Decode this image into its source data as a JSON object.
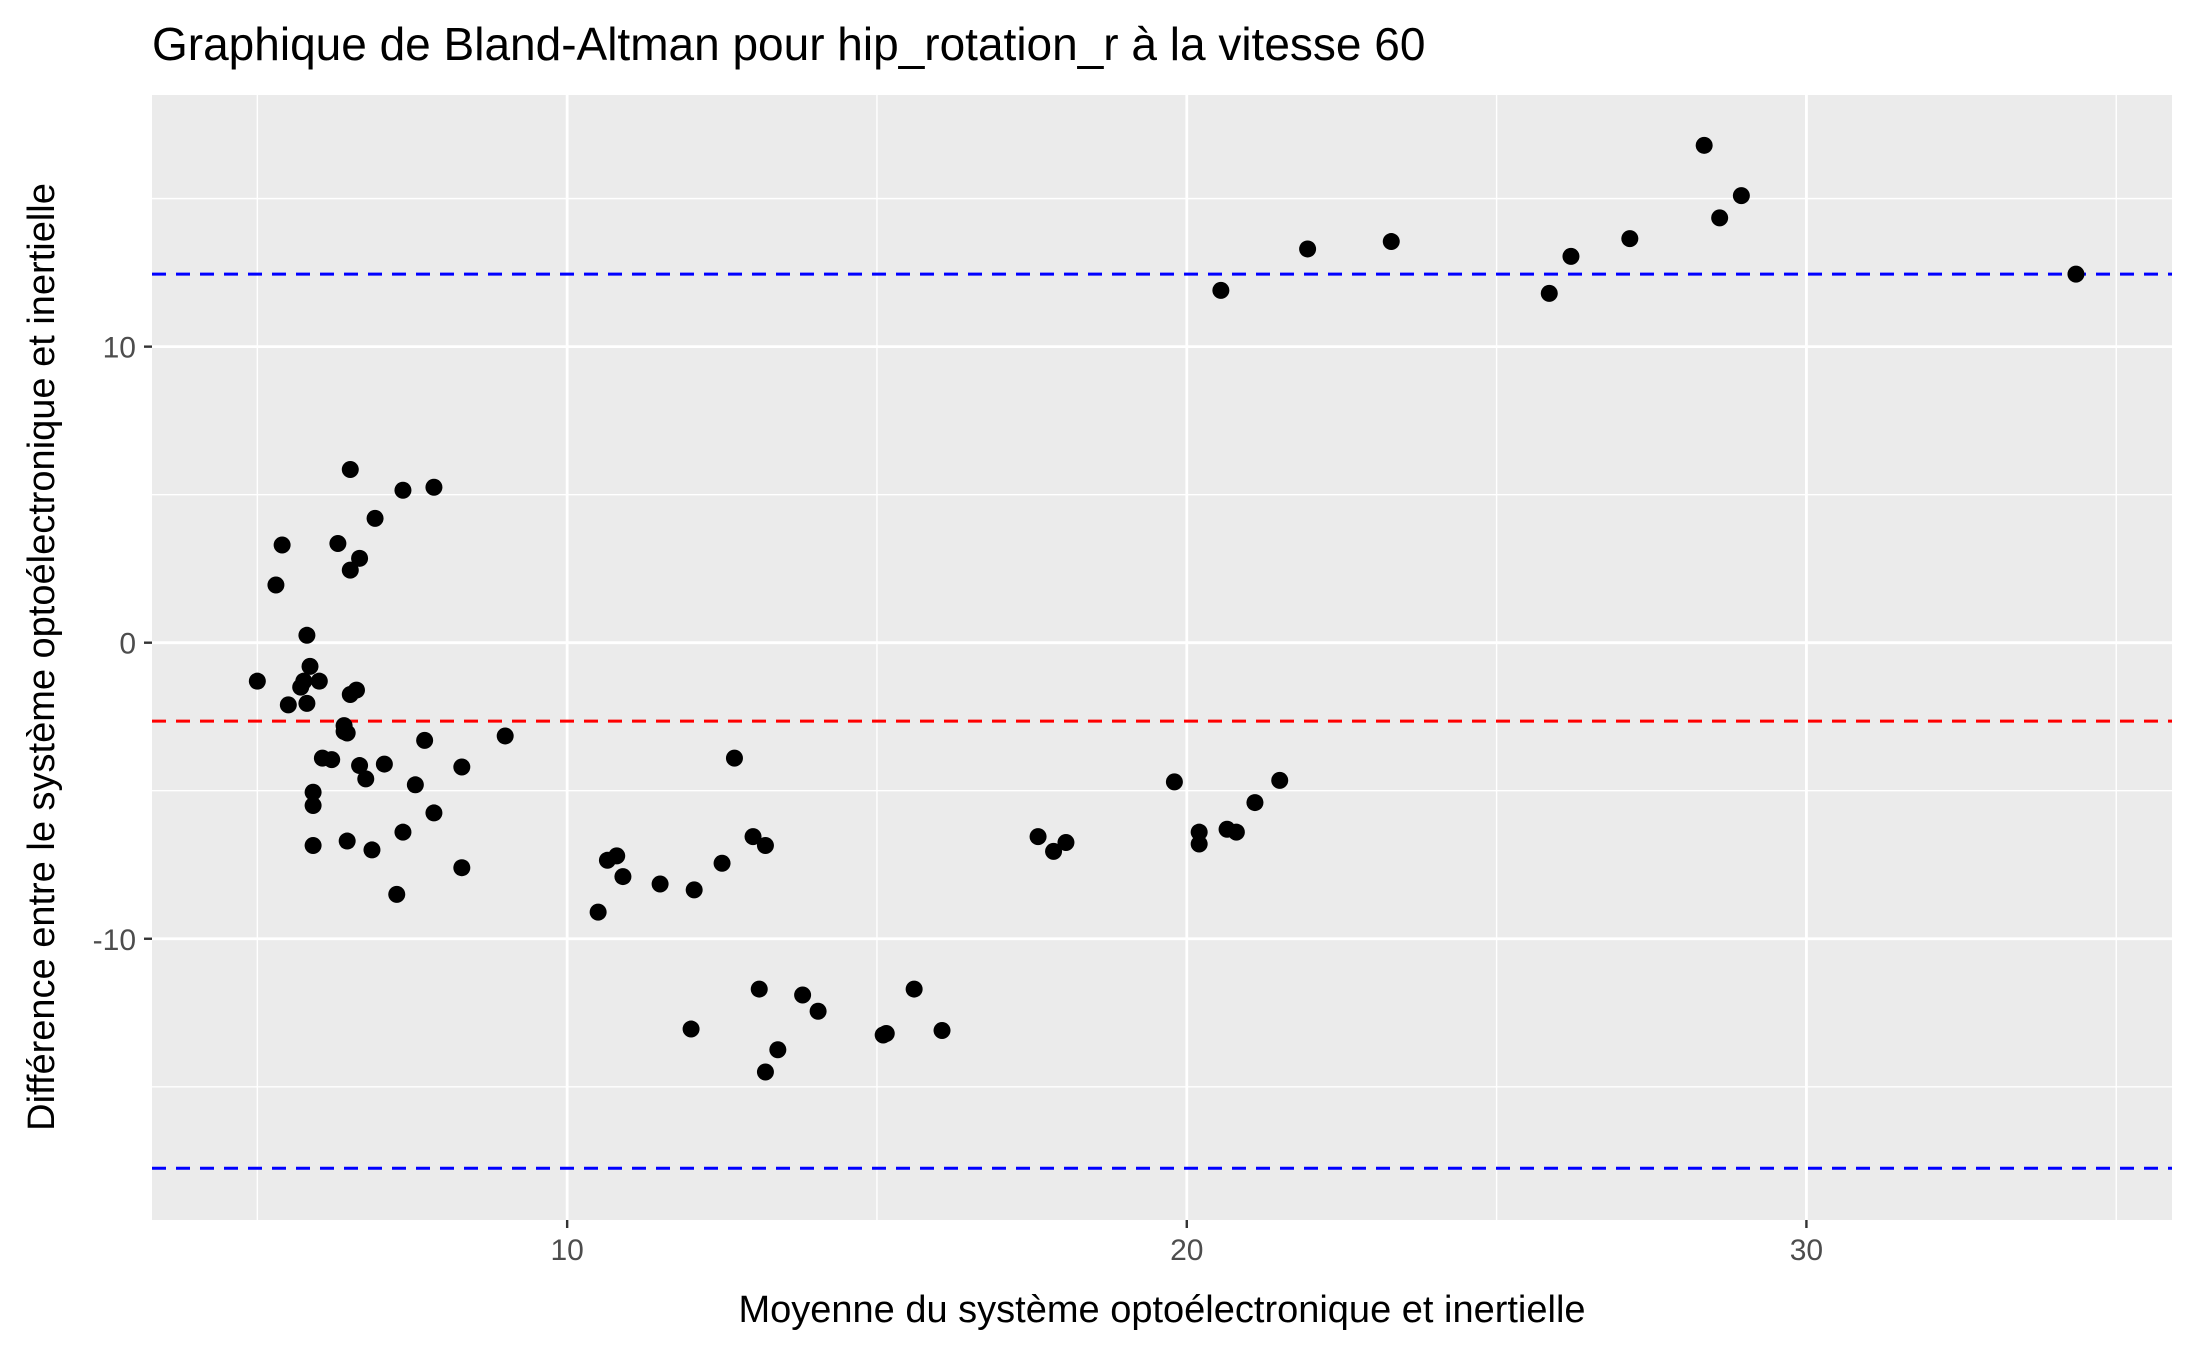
{
  "chart_data": {
    "type": "scatter",
    "title": "Graphique de Bland-Altman pour hip_rotation_r à la vitesse 60",
    "xlabel": "Moyenne du système optoélectronique et inertielle",
    "ylabel": "Différence entre le système optoélectronique et inertielle",
    "xlim": [
      3.3,
      35.9
    ],
    "ylim": [
      -19.5,
      18.5
    ],
    "x_ticks": [
      10,
      20,
      30
    ],
    "x_tick_labels": [
      "10",
      "20",
      "30"
    ],
    "x_minor_ticks": [
      5,
      15,
      25,
      35
    ],
    "y_ticks": [
      -10,
      0,
      10
    ],
    "y_tick_labels": [
      "-10",
      "0",
      "10"
    ],
    "y_minor_ticks": [
      -15,
      -5,
      5,
      15
    ],
    "grid": true,
    "reference_lines": [
      {
        "y": 12.45,
        "color": "#0000ff",
        "style": "dashed"
      },
      {
        "y": -2.65,
        "color": "#ff0000",
        "style": "dashed"
      },
      {
        "y": -17.75,
        "color": "#0000ff",
        "style": "dashed"
      }
    ],
    "points": [
      {
        "x": 5.0,
        "y": -1.3
      },
      {
        "x": 5.3,
        "y": 1.95
      },
      {
        "x": 5.4,
        "y": 3.3
      },
      {
        "x": 5.5,
        "y": -2.1
      },
      {
        "x": 5.7,
        "y": -1.5
      },
      {
        "x": 5.75,
        "y": -1.3
      },
      {
        "x": 5.8,
        "y": -2.05
      },
      {
        "x": 5.8,
        "y": 0.25
      },
      {
        "x": 5.85,
        "y": -0.8
      },
      {
        "x": 5.9,
        "y": -5.05
      },
      {
        "x": 5.9,
        "y": -5.5
      },
      {
        "x": 5.9,
        "y": -6.85
      },
      {
        "x": 6.0,
        "y": -1.3
      },
      {
        "x": 6.05,
        "y": -3.9
      },
      {
        "x": 6.2,
        "y": -3.95
      },
      {
        "x": 6.3,
        "y": 3.35
      },
      {
        "x": 6.4,
        "y": -2.8
      },
      {
        "x": 6.4,
        "y": -3.0
      },
      {
        "x": 6.45,
        "y": -3.05
      },
      {
        "x": 6.45,
        "y": -6.7
      },
      {
        "x": 6.5,
        "y": 5.85
      },
      {
        "x": 6.5,
        "y": 2.45
      },
      {
        "x": 6.5,
        "y": -1.75
      },
      {
        "x": 6.6,
        "y": -1.6
      },
      {
        "x": 6.65,
        "y": 2.85
      },
      {
        "x": 6.65,
        "y": -4.15
      },
      {
        "x": 6.75,
        "y": -4.6
      },
      {
        "x": 6.85,
        "y": -7.0
      },
      {
        "x": 6.9,
        "y": 4.2
      },
      {
        "x": 7.05,
        "y": -4.1
      },
      {
        "x": 7.25,
        "y": -8.5
      },
      {
        "x": 7.35,
        "y": 5.15
      },
      {
        "x": 7.35,
        "y": -6.4
      },
      {
        "x": 7.55,
        "y": -4.8
      },
      {
        "x": 7.7,
        "y": -3.3
      },
      {
        "x": 7.85,
        "y": 5.25
      },
      {
        "x": 7.85,
        "y": -5.75
      },
      {
        "x": 8.3,
        "y": -4.2
      },
      {
        "x": 8.3,
        "y": -7.6
      },
      {
        "x": 9.0,
        "y": -3.15
      },
      {
        "x": 10.5,
        "y": -9.1
      },
      {
        "x": 10.65,
        "y": -7.35
      },
      {
        "x": 10.8,
        "y": -7.2
      },
      {
        "x": 10.9,
        "y": -7.9
      },
      {
        "x": 11.5,
        "y": -8.15
      },
      {
        "x": 12.0,
        "y": -13.05
      },
      {
        "x": 12.05,
        "y": -8.35
      },
      {
        "x": 12.5,
        "y": -7.45
      },
      {
        "x": 12.7,
        "y": -3.9
      },
      {
        "x": 13.0,
        "y": -6.55
      },
      {
        "x": 13.1,
        "y": -11.7
      },
      {
        "x": 13.2,
        "y": -6.85
      },
      {
        "x": 13.2,
        "y": -14.5
      },
      {
        "x": 13.4,
        "y": -13.75
      },
      {
        "x": 13.8,
        "y": -11.9
      },
      {
        "x": 14.05,
        "y": -12.45
      },
      {
        "x": 15.1,
        "y": -13.25
      },
      {
        "x": 15.15,
        "y": -13.2
      },
      {
        "x": 15.6,
        "y": -11.7
      },
      {
        "x": 16.05,
        "y": -13.1
      },
      {
        "x": 17.6,
        "y": -6.55
      },
      {
        "x": 17.85,
        "y": -7.05
      },
      {
        "x": 18.05,
        "y": -6.75
      },
      {
        "x": 19.8,
        "y": -4.7
      },
      {
        "x": 20.2,
        "y": -6.4
      },
      {
        "x": 20.2,
        "y": -6.8
      },
      {
        "x": 20.55,
        "y": 11.9
      },
      {
        "x": 20.65,
        "y": -6.3
      },
      {
        "x": 20.8,
        "y": -6.4
      },
      {
        "x": 21.1,
        "y": -5.4
      },
      {
        "x": 21.5,
        "y": -4.65
      },
      {
        "x": 21.95,
        "y": 13.3
      },
      {
        "x": 23.3,
        "y": 13.55
      },
      {
        "x": 25.85,
        "y": 11.8
      },
      {
        "x": 26.2,
        "y": 13.05
      },
      {
        "x": 27.15,
        "y": 13.65
      },
      {
        "x": 28.35,
        "y": 16.8
      },
      {
        "x": 28.6,
        "y": 14.35
      },
      {
        "x": 28.95,
        "y": 15.1
      },
      {
        "x": 34.35,
        "y": 12.45
      }
    ]
  }
}
